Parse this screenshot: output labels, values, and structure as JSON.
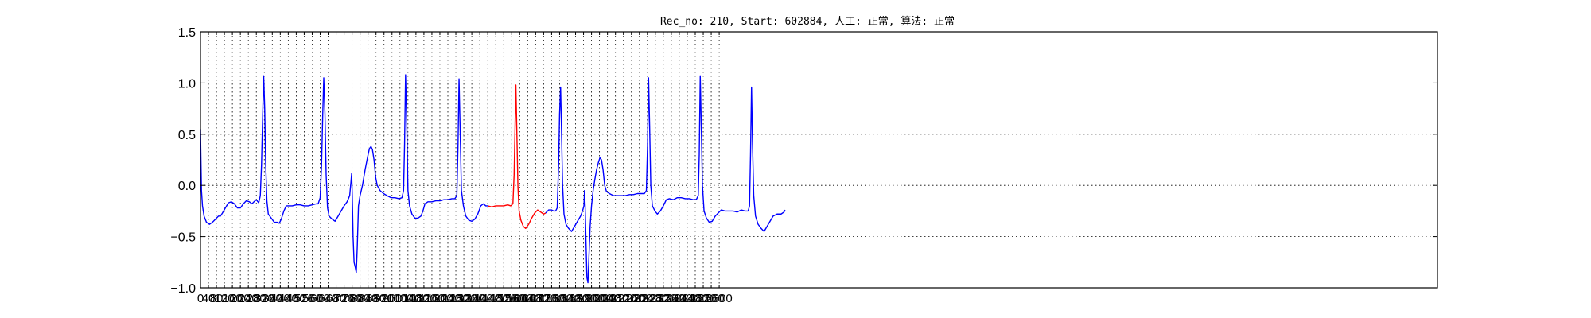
{
  "chart_data": {
    "type": "line",
    "title": "Rec_no: 210, Start: 602884, 人工: 正常, 算法: 正常",
    "xlabel": "",
    "ylabel": "",
    "xlim": [
      0,
      6200
    ],
    "ylim": [
      -1.0,
      1.5
    ],
    "x_ticks": [
      0,
      40,
      80,
      120,
      160,
      200,
      240,
      280,
      320,
      360,
      400,
      440,
      480,
      520,
      560,
      600,
      640,
      680,
      720,
      760,
      800,
      840,
      880,
      920,
      960,
      1000,
      1040,
      1080,
      1120,
      1160,
      1200,
      1240,
      1280,
      1320,
      1360,
      1400,
      1440,
      1480,
      1520,
      1560,
      1600,
      1640,
      1680,
      1720,
      1760,
      1800,
      1840,
      1880,
      1920,
      1960,
      2000,
      2040,
      2080,
      2120,
      2160,
      2200,
      2240,
      2280,
      2320,
      2360,
      2400,
      2440,
      2480,
      2520,
      2560,
      2600
    ],
    "y_ticks": [
      -1.0,
      -0.5,
      0.0,
      0.5,
      1.0,
      1.5
    ],
    "y_tick_labels": [
      "−1.0",
      "−0.5",
      "0.0",
      "0.5",
      "1.0",
      "1.5"
    ],
    "grid": true,
    "series": [
      {
        "color": "#0000ff",
        "points": [
          [
            0,
            0.55
          ],
          [
            2,
            0.3
          ],
          [
            5,
            -0.05
          ],
          [
            10,
            -0.2
          ],
          [
            18,
            -0.3
          ],
          [
            30,
            -0.36
          ],
          [
            45,
            -0.38
          ],
          [
            60,
            -0.36
          ],
          [
            75,
            -0.33
          ],
          [
            90,
            -0.3
          ],
          [
            100,
            -0.3
          ],
          [
            110,
            -0.27
          ],
          [
            125,
            -0.22
          ],
          [
            140,
            -0.17
          ],
          [
            155,
            -0.16
          ],
          [
            170,
            -0.18
          ],
          [
            185,
            -0.22
          ],
          [
            200,
            -0.22
          ],
          [
            215,
            -0.18
          ],
          [
            230,
            -0.15
          ],
          [
            245,
            -0.16
          ],
          [
            258,
            -0.18
          ],
          [
            268,
            -0.16
          ],
          [
            280,
            -0.14
          ],
          [
            292,
            -0.17
          ],
          [
            300,
            -0.1
          ],
          [
            306,
            0.2
          ],
          [
            312,
            0.7
          ],
          [
            317,
            1.07
          ],
          [
            322,
            0.75
          ],
          [
            327,
            0.2
          ],
          [
            333,
            -0.15
          ],
          [
            340,
            -0.28
          ],
          [
            355,
            -0.32
          ],
          [
            370,
            -0.36
          ],
          [
            385,
            -0.36
          ],
          [
            395,
            -0.37
          ],
          [
            405,
            -0.33
          ],
          [
            418,
            -0.25
          ],
          [
            430,
            -0.2
          ],
          [
            445,
            -0.2
          ],
          [
            460,
            -0.2
          ],
          [
            480,
            -0.19
          ],
          [
            500,
            -0.19
          ],
          [
            520,
            -0.2
          ],
          [
            540,
            -0.2
          ],
          [
            560,
            -0.19
          ],
          [
            580,
            -0.18
          ],
          [
            590,
            -0.18
          ],
          [
            600,
            -0.12
          ],
          [
            607,
            0.2
          ],
          [
            613,
            0.7
          ],
          [
            618,
            1.05
          ],
          [
            624,
            0.7
          ],
          [
            630,
            0.1
          ],
          [
            637,
            -0.22
          ],
          [
            645,
            -0.3
          ],
          [
            660,
            -0.33
          ],
          [
            675,
            -0.35
          ],
          [
            690,
            -0.3
          ],
          [
            705,
            -0.25
          ],
          [
            720,
            -0.2
          ],
          [
            735,
            -0.16
          ],
          [
            748,
            -0.1
          ],
          [
            755,
            0.05
          ],
          [
            758,
            0.12
          ],
          [
            761,
            -0.1
          ],
          [
            765,
            -0.5
          ],
          [
            770,
            -0.75
          ],
          [
            776,
            -0.8
          ],
          [
            781,
            -0.85
          ],
          [
            786,
            -0.6
          ],
          [
            792,
            -0.2
          ],
          [
            800,
            -0.1
          ],
          [
            812,
            0.0
          ],
          [
            825,
            0.15
          ],
          [
            838,
            0.28
          ],
          [
            847,
            0.36
          ],
          [
            855,
            0.38
          ],
          [
            862,
            0.35
          ],
          [
            870,
            0.25
          ],
          [
            878,
            0.08
          ],
          [
            886,
            0.0
          ],
          [
            900,
            -0.05
          ],
          [
            918,
            -0.08
          ],
          [
            935,
            -0.1
          ],
          [
            955,
            -0.12
          ],
          [
            975,
            -0.12
          ],
          [
            995,
            -0.13
          ],
          [
            1010,
            -0.12
          ],
          [
            1018,
            -0.05
          ],
          [
            1023,
            0.4
          ],
          [
            1028,
            1.08
          ],
          [
            1034,
            0.6
          ],
          [
            1040,
            -0.05
          ],
          [
            1048,
            -0.2
          ],
          [
            1060,
            -0.28
          ],
          [
            1075,
            -0.32
          ],
          [
            1090,
            -0.32
          ],
          [
            1105,
            -0.3
          ],
          [
            1115,
            -0.25
          ],
          [
            1125,
            -0.18
          ],
          [
            1140,
            -0.16
          ],
          [
            1160,
            -0.16
          ],
          [
            1180,
            -0.15
          ],
          [
            1200,
            -0.15
          ],
          [
            1220,
            -0.14
          ],
          [
            1240,
            -0.14
          ],
          [
            1260,
            -0.13
          ],
          [
            1275,
            -0.13
          ],
          [
            1285,
            -0.1
          ],
          [
            1291,
            0.4
          ],
          [
            1296,
            1.04
          ],
          [
            1302,
            0.5
          ],
          [
            1308,
            -0.05
          ],
          [
            1318,
            -0.2
          ],
          [
            1330,
            -0.3
          ],
          [
            1345,
            -0.34
          ],
          [
            1360,
            -0.35
          ],
          [
            1375,
            -0.33
          ],
          [
            1390,
            -0.28
          ],
          [
            1405,
            -0.2
          ],
          [
            1418,
            -0.18
          ],
          [
            1430,
            -0.2
          ],
          [
            1440,
            -0.2
          ]
        ]
      },
      {
        "color": "#ff0000",
        "points": [
          [
            1440,
            -0.2
          ],
          [
            1460,
            -0.21
          ],
          [
            1480,
            -0.2
          ],
          [
            1500,
            -0.2
          ],
          [
            1520,
            -0.2
          ],
          [
            1540,
            -0.19
          ],
          [
            1555,
            -0.2
          ],
          [
            1566,
            -0.18
          ],
          [
            1572,
            0.1
          ],
          [
            1577,
            0.6
          ],
          [
            1581,
            0.98
          ],
          [
            1586,
            0.5
          ],
          [
            1591,
            0.0
          ],
          [
            1597,
            -0.25
          ],
          [
            1606,
            -0.34
          ],
          [
            1618,
            -0.4
          ],
          [
            1630,
            -0.42
          ],
          [
            1645,
            -0.38
          ],
          [
            1660,
            -0.32
          ],
          [
            1675,
            -0.27
          ],
          [
            1690,
            -0.24
          ],
          [
            1705,
            -0.26
          ],
          [
            1720,
            -0.28
          ],
          [
            1730,
            -0.27
          ]
        ]
      },
      {
        "color": "#0000ff",
        "points": [
          [
            1730,
            -0.27
          ],
          [
            1745,
            -0.24
          ],
          [
            1760,
            -0.24
          ],
          [
            1770,
            -0.25
          ],
          [
            1780,
            -0.25
          ],
          [
            1788,
            -0.22
          ],
          [
            1795,
            0.2
          ],
          [
            1800,
            0.7
          ],
          [
            1805,
            0.96
          ],
          [
            1810,
            0.5
          ],
          [
            1815,
            0.0
          ],
          [
            1822,
            -0.28
          ],
          [
            1832,
            -0.38
          ],
          [
            1845,
            -0.42
          ],
          [
            1860,
            -0.45
          ],
          [
            1875,
            -0.4
          ],
          [
            1890,
            -0.35
          ],
          [
            1905,
            -0.3
          ],
          [
            1915,
            -0.25
          ],
          [
            1922,
            -0.2
          ],
          [
            1925,
            -0.05
          ],
          [
            1928,
            -0.2
          ],
          [
            1933,
            -0.6
          ],
          [
            1937,
            -0.9
          ],
          [
            1942,
            -0.95
          ],
          [
            1947,
            -0.7
          ],
          [
            1953,
            -0.4
          ],
          [
            1960,
            -0.2
          ],
          [
            1968,
            -0.05
          ],
          [
            1976,
            0.05
          ],
          [
            1985,
            0.15
          ],
          [
            1994,
            0.22
          ],
          [
            2002,
            0.27
          ],
          [
            2010,
            0.25
          ],
          [
            2018,
            0.15
          ],
          [
            2026,
            0.0
          ],
          [
            2035,
            -0.06
          ],
          [
            2050,
            -0.08
          ],
          [
            2070,
            -0.1
          ],
          [
            2090,
            -0.1
          ],
          [
            2110,
            -0.1
          ],
          [
            2130,
            -0.1
          ],
          [
            2150,
            -0.09
          ],
          [
            2170,
            -0.09
          ],
          [
            2190,
            -0.08
          ],
          [
            2210,
            -0.08
          ],
          [
            2225,
            -0.08
          ],
          [
            2235,
            -0.05
          ],
          [
            2241,
            0.4
          ],
          [
            2246,
            1.05
          ],
          [
            2251,
            0.6
          ],
          [
            2257,
            0.0
          ],
          [
            2265,
            -0.2
          ],
          [
            2278,
            -0.25
          ],
          [
            2290,
            -0.28
          ],
          [
            2305,
            -0.25
          ],
          [
            2320,
            -0.2
          ],
          [
            2335,
            -0.14
          ],
          [
            2350,
            -0.13
          ],
          [
            2370,
            -0.14
          ],
          [
            2390,
            -0.12
          ],
          [
            2410,
            -0.12
          ],
          [
            2430,
            -0.13
          ],
          [
            2450,
            -0.13
          ],
          [
            2470,
            -0.14
          ],
          [
            2485,
            -0.14
          ],
          [
            2495,
            -0.1
          ],
          [
            2500,
            0.3
          ],
          [
            2505,
            1.07
          ],
          [
            2510,
            0.6
          ],
          [
            2516,
            0.0
          ],
          [
            2524,
            -0.25
          ],
          [
            2536,
            -0.32
          ],
          [
            2550,
            -0.36
          ],
          [
            2565,
            -0.35
          ],
          [
            2580,
            -0.3
          ],
          [
            2595,
            -0.27
          ],
          [
            2610,
            -0.24
          ],
          [
            2630,
            -0.25
          ],
          [
            2650,
            -0.25
          ],
          [
            2670,
            -0.25
          ],
          [
            2690,
            -0.26
          ],
          [
            2710,
            -0.24
          ],
          [
            2730,
            -0.25
          ],
          [
            2745,
            -0.25
          ],
          [
            2752,
            -0.2
          ],
          [
            2757,
            0.3
          ],
          [
            2762,
            0.96
          ],
          [
            2767,
            0.4
          ],
          [
            2773,
            -0.1
          ],
          [
            2782,
            -0.3
          ],
          [
            2795,
            -0.38
          ],
          [
            2810,
            -0.42
          ],
          [
            2825,
            -0.45
          ],
          [
            2840,
            -0.4
          ],
          [
            2855,
            -0.35
          ],
          [
            2870,
            -0.3
          ],
          [
            2890,
            -0.28
          ],
          [
            2910,
            -0.28
          ],
          [
            2925,
            -0.26
          ],
          [
            2930,
            -0.24
          ]
        ]
      }
    ]
  }
}
